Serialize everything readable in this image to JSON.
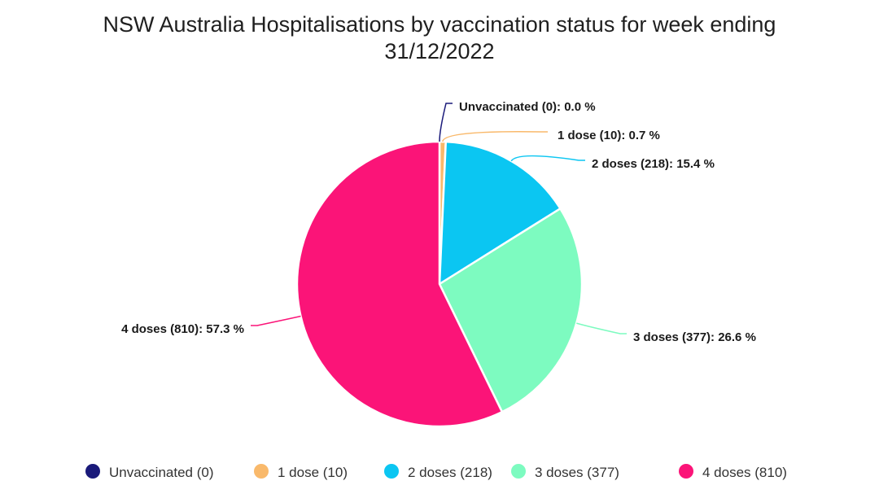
{
  "chart_data": {
    "type": "pie",
    "title_lines": [
      "NSW Australia Hospitalisations by vaccination status for week ending",
      "31/12/2022"
    ],
    "legend_position": "bottom",
    "slices": [
      {
        "label": "Unvaccinated (0)",
        "value": 0,
        "percent_text": "0.0 %",
        "color": "#1a1a7a"
      },
      {
        "label": "1 dose (10)",
        "value": 10,
        "percent_text": "0.7 %",
        "color": "#f9b96b"
      },
      {
        "label": "2 doses (218)",
        "value": 218,
        "percent_text": "15.4 %",
        "color": "#0bc6f2"
      },
      {
        "label": "3 doses (377)",
        "value": 377,
        "percent_text": "26.6 %",
        "color": "#7dfbc0"
      },
      {
        "label": "4 doses (810)",
        "value": 810,
        "percent_text": "57.3 %",
        "color": "#fb1478"
      }
    ]
  }
}
